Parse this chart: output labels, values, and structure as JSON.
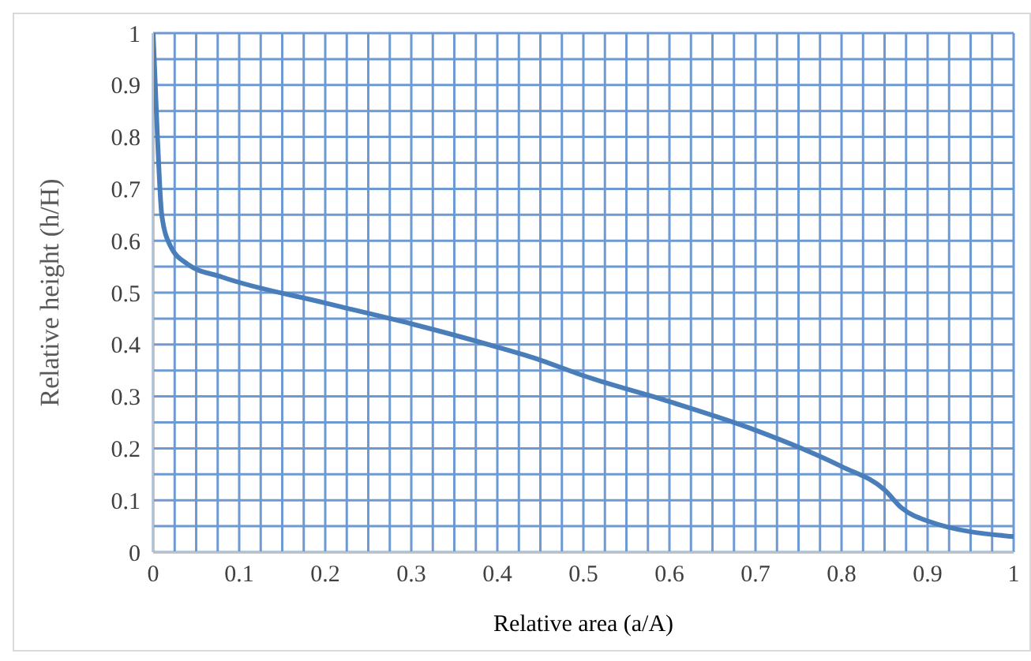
{
  "chart_data": {
    "type": "line",
    "xlabel": "Relative area (a/A)",
    "ylabel": "Relative height (h/H)",
    "x": [
      0,
      0.005,
      0.01,
      0.02,
      0.04,
      0.08,
      0.2,
      0.3,
      0.4,
      0.45,
      0.5,
      0.6,
      0.7,
      0.8,
      0.85,
      0.87,
      0.9,
      1
    ],
    "series": [
      {
        "color": "#4a7ebb",
        "values": [
          1,
          0.8,
          0.65,
          0.59,
          0.555,
          0.53,
          0.48,
          0.44,
          0.395,
          0.37,
          0.34,
          0.29,
          0.235,
          0.165,
          0.12,
          0.085,
          0.06,
          0.03
        ]
      }
    ],
    "xlim": [
      0,
      1
    ],
    "ylim": [
      0,
      1
    ],
    "xticks": [
      0,
      {
        "value": 0.025,
        "label": null
      },
      {
        "value": 0.05,
        "label": null
      },
      {
        "value": 0.075,
        "label": null
      },
      0.1,
      {
        "value": 0.125,
        "label": null
      },
      {
        "value": 0.15,
        "label": null
      },
      {
        "value": 0.175,
        "label": null
      },
      0.2,
      {
        "value": 0.225,
        "label": null
      },
      {
        "value": 0.25,
        "label": null
      },
      {
        "value": 0.275,
        "label": null
      },
      0.3,
      {
        "value": 0.325,
        "label": null
      },
      {
        "value": 0.35,
        "label": null
      },
      {
        "value": 0.375,
        "label": null
      },
      0.4,
      {
        "value": 0.425,
        "label": null
      },
      {
        "value": 0.45,
        "label": null
      },
      {
        "value": 0.475,
        "label": null
      },
      0.5,
      {
        "value": 0.525,
        "label": null
      },
      {
        "value": 0.55,
        "label": null
      },
      {
        "value": 0.575,
        "label": null
      },
      0.6,
      {
        "value": 0.625,
        "label": null
      },
      {
        "value": 0.65,
        "label": null
      },
      {
        "value": 0.675,
        "label": null
      },
      0.7,
      {
        "value": 0.725,
        "label": null
      },
      {
        "value": 0.75,
        "label": null
      },
      {
        "value": 0.775,
        "label": null
      },
      0.8,
      {
        "value": 0.825,
        "label": null
      },
      {
        "value": 0.85,
        "label": null
      },
      {
        "value": 0.875,
        "label": null
      },
      0.9,
      {
        "value": 0.925,
        "label": null
      },
      {
        "value": 0.95,
        "label": null
      },
      {
        "value": 0.975,
        "label": null
      },
      1
    ],
    "yticks": [
      0,
      {
        "value": 0.05,
        "label": null
      },
      0.1,
      {
        "value": 0.15,
        "label": null
      },
      0.2,
      {
        "value": 0.25,
        "label": null
      },
      0.3,
      {
        "value": 0.35,
        "label": null
      },
      0.4,
      {
        "value": 0.45,
        "label": null
      },
      0.5,
      {
        "value": 0.55,
        "label": null
      },
      0.6,
      {
        "value": 0.65,
        "label": null
      },
      0.7,
      {
        "value": 0.75,
        "label": null
      },
      0.8,
      {
        "value": 0.85,
        "label": null
      },
      0.9,
      {
        "value": 0.95,
        "label": null
      },
      1
    ],
    "grid": true,
    "marker": "none",
    "line_style": "solid"
  }
}
